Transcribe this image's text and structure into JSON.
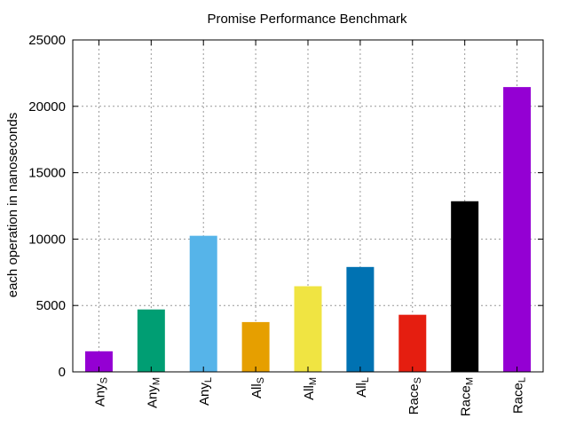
{
  "chart_data": {
    "type": "bar",
    "title": "Promise Performance Benchmark",
    "xlabel": "",
    "ylabel": "each operation in nanoseconds",
    "ylim": [
      0,
      25000
    ],
    "yticks": [
      0,
      5000,
      10000,
      15000,
      20000,
      25000
    ],
    "grid": true,
    "legend": "none",
    "categories": [
      {
        "base": "Any",
        "sub": "S"
      },
      {
        "base": "Any",
        "sub": "M"
      },
      {
        "base": "Any",
        "sub": "L"
      },
      {
        "base": "All",
        "sub": "S"
      },
      {
        "base": "All",
        "sub": "M"
      },
      {
        "base": "All",
        "sub": "L"
      },
      {
        "base": "Race",
        "sub": "S"
      },
      {
        "base": "Race",
        "sub": "M"
      },
      {
        "base": "Race",
        "sub": "L"
      }
    ],
    "values": [
      1550,
      4700,
      10250,
      3750,
      6450,
      7900,
      4300,
      12850,
      21450
    ],
    "colors": [
      "#9400d3",
      "#009e73",
      "#56b4e9",
      "#e69f00",
      "#f0e442",
      "#0072b2",
      "#e51e10",
      "#000000",
      "#9400d3"
    ]
  }
}
